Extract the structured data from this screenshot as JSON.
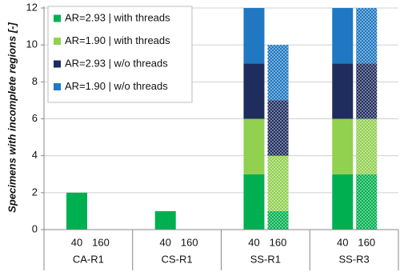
{
  "chart_data": {
    "type": "stacked-bar",
    "ylabel": "Specimens with incomplete regions [-]",
    "groups": [
      "CA-R1",
      "CS-R1",
      "SS-R1",
      "SS-R3"
    ],
    "categories": [
      "40",
      "160",
      "40",
      "160",
      "40",
      "160",
      "40",
      "160"
    ],
    "series": [
      {
        "name": "AR=2.93 | with threads",
        "color": "#00b050",
        "values": [
          2,
          0,
          1,
          0,
          3,
          1,
          3,
          3
        ]
      },
      {
        "name": "AR=1.90 | with threads",
        "color": "#92d050",
        "values": [
          0,
          0,
          0,
          0,
          3,
          3,
          3,
          3
        ]
      },
      {
        "name": "AR=2.93 | w/o threads",
        "color": "#1f2c5e",
        "values": [
          0,
          0,
          0,
          0,
          3,
          3,
          3,
          3
        ]
      },
      {
        "name": "AR=1.90 | w/o threads",
        "color": "#1f78c1",
        "values": [
          0,
          0,
          0,
          0,
          3,
          3,
          3,
          3
        ]
      }
    ],
    "ylim": [
      0,
      12
    ],
    "yticks": [
      0,
      2,
      4,
      6,
      8,
      10,
      12
    ],
    "grid": true,
    "legend": "upper left"
  }
}
